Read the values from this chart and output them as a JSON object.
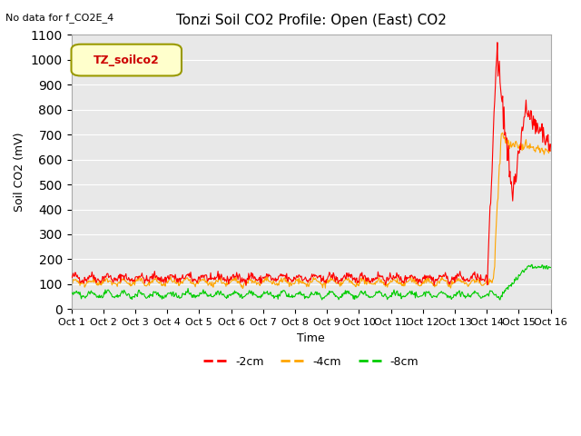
{
  "title": "Tonzi Soil CO2 Profile: Open (East) CO2",
  "top_left_note": "No data for f_CO2E_4",
  "ylabel": "Soil CO2 (mV)",
  "xlabel": "Time",
  "ylim": [
    0,
    1100
  ],
  "legend_label": "TZ_soilco2",
  "series_labels": [
    "-2cm",
    "-4cm",
    "-8cm"
  ],
  "series_colors": [
    "#ff0000",
    "#ffa500",
    "#00cc00"
  ],
  "x_ticks": [
    "Oct 1",
    "Oct 2",
    "Oct 3",
    "Oct 4",
    "Oct 5",
    "Oct 6",
    "Oct 7",
    "Oct 8",
    "Oct 9",
    "Oct 10",
    "Oct 11",
    "Oct 12",
    "Oct 13",
    "Oct 14",
    "Oct 15",
    "Oct 16"
  ],
  "background_color": "#e8e8e8",
  "grid_color": "#ffffff",
  "n_days": 15,
  "pts_per_day": 48
}
